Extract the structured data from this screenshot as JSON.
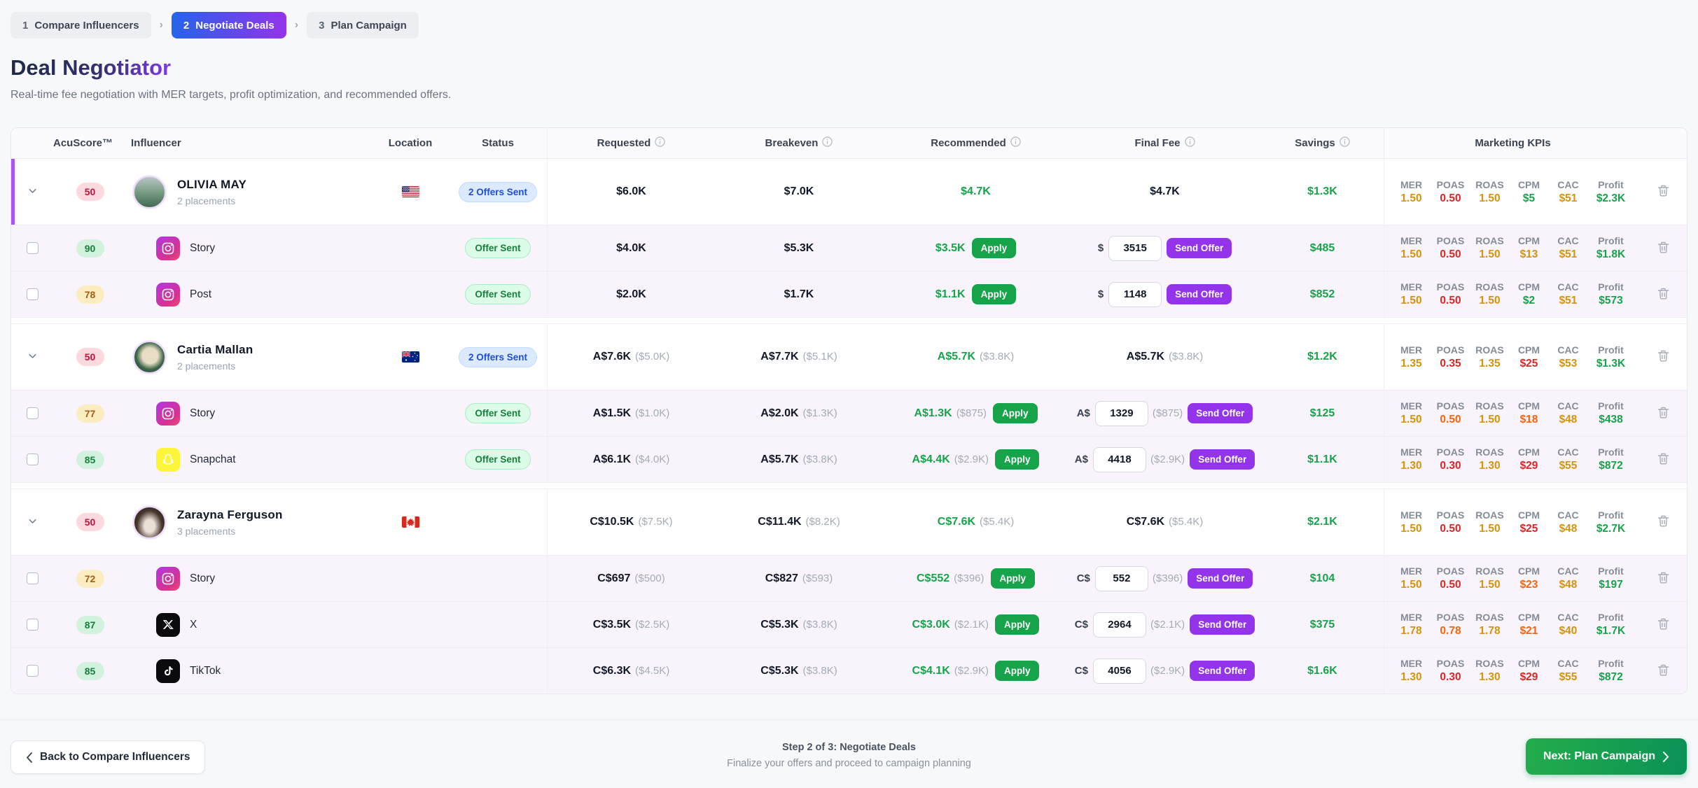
{
  "breadcrumb": {
    "steps": [
      {
        "num": "1",
        "label": "Compare Influencers",
        "active": false
      },
      {
        "num": "2",
        "label": "Negotiate Deals",
        "active": true
      },
      {
        "num": "3",
        "label": "Plan Campaign",
        "active": false
      }
    ]
  },
  "page": {
    "title": "Deal Negotiator",
    "subtitle": "Real-time fee negotiation with MER targets, profit optimization, and recommended offers."
  },
  "table": {
    "headers": {
      "acuscore": "AcuScore™",
      "influencer": "Influencer",
      "location": "Location",
      "status": "Status",
      "requested": "Requested",
      "breakeven": "Breakeven",
      "recommended": "Recommended",
      "final_fee": "Final Fee",
      "savings": "Savings",
      "kpis": "Marketing KPIs"
    },
    "kpi_labels": [
      "MER",
      "POAS",
      "ROAS",
      "CPM",
      "CAC",
      "Profit"
    ],
    "buttons": {
      "apply": "Apply",
      "send_offer": "Send Offer"
    },
    "groups": [
      {
        "name": "OLIVIA MAY",
        "placements_label": "2 placements",
        "score": "50",
        "score_level": "low",
        "flag": "us",
        "avatar": "olivia",
        "accent": true,
        "status": {
          "label": "2 Offers Sent",
          "style": "blue"
        },
        "requested": {
          "main": "$6.0K",
          "secondary": ""
        },
        "breakeven": {
          "main": "$7.0K",
          "secondary": ""
        },
        "recommended": {
          "main": "$4.7K",
          "secondary": ""
        },
        "final_fee": {
          "main": "$4.7K",
          "secondary": ""
        },
        "savings": "$1.3K",
        "kpis": [
          {
            "v": "1.50",
            "c": "amber"
          },
          {
            "v": "0.50",
            "c": "red"
          },
          {
            "v": "1.50",
            "c": "amber"
          },
          {
            "v": "$5",
            "c": "green"
          },
          {
            "v": "$51",
            "c": "amber"
          },
          {
            "v": "$2.3K",
            "c": "green"
          }
        ],
        "placements": [
          {
            "label": "Story",
            "platform": "instagram",
            "score": "90",
            "score_level": "high",
            "status": {
              "label": "Offer Sent",
              "style": "green"
            },
            "requested": {
              "main": "$4.0K",
              "secondary": ""
            },
            "breakeven": {
              "main": "$5.3K",
              "secondary": ""
            },
            "recommended": {
              "main": "$3.5K",
              "secondary": ""
            },
            "fee": {
              "prefix": "$",
              "value": "3515",
              "secondary": ""
            },
            "savings": "$485",
            "kpis": [
              {
                "v": "1.50",
                "c": "amber"
              },
              {
                "v": "0.50",
                "c": "red"
              },
              {
                "v": "1.50",
                "c": "amber"
              },
              {
                "v": "$13",
                "c": "amber"
              },
              {
                "v": "$51",
                "c": "amber"
              },
              {
                "v": "$1.8K",
                "c": "green"
              }
            ]
          },
          {
            "label": "Post",
            "platform": "instagram",
            "score": "78",
            "score_level": "mid",
            "status": {
              "label": "Offer Sent",
              "style": "green"
            },
            "requested": {
              "main": "$2.0K",
              "secondary": ""
            },
            "breakeven": {
              "main": "$1.7K",
              "secondary": ""
            },
            "recommended": {
              "main": "$1.1K",
              "secondary": ""
            },
            "fee": {
              "prefix": "$",
              "value": "1148",
              "secondary": ""
            },
            "savings": "$852",
            "kpis": [
              {
                "v": "1.50",
                "c": "amber"
              },
              {
                "v": "0.50",
                "c": "red"
              },
              {
                "v": "1.50",
                "c": "amber"
              },
              {
                "v": "$2",
                "c": "green"
              },
              {
                "v": "$51",
                "c": "amber"
              },
              {
                "v": "$573",
                "c": "green"
              }
            ]
          }
        ]
      },
      {
        "name": "Cartia Mallan",
        "placements_label": "2 placements",
        "score": "50",
        "score_level": "low",
        "flag": "au",
        "avatar": "cartia",
        "accent": false,
        "status": {
          "label": "2 Offers Sent",
          "style": "blue"
        },
        "requested": {
          "main": "A$7.6K",
          "secondary": "($5.0K)"
        },
        "breakeven": {
          "main": "A$7.7K",
          "secondary": "($5.1K)"
        },
        "recommended": {
          "main": "A$5.7K",
          "secondary": "($3.8K)"
        },
        "final_fee": {
          "main": "A$5.7K",
          "secondary": "($3.8K)"
        },
        "savings": "$1.2K",
        "kpis": [
          {
            "v": "1.35",
            "c": "amber"
          },
          {
            "v": "0.35",
            "c": "red"
          },
          {
            "v": "1.35",
            "c": "amber"
          },
          {
            "v": "$25",
            "c": "red"
          },
          {
            "v": "$53",
            "c": "amber"
          },
          {
            "v": "$1.3K",
            "c": "green"
          }
        ],
        "placements": [
          {
            "label": "Story",
            "platform": "instagram",
            "score": "77",
            "score_level": "mid",
            "status": {
              "label": "Offer Sent",
              "style": "green"
            },
            "requested": {
              "main": "A$1.5K",
              "secondary": "($1.0K)"
            },
            "breakeven": {
              "main": "A$2.0K",
              "secondary": "($1.3K)"
            },
            "recommended": {
              "main": "A$1.3K",
              "secondary": "($875)"
            },
            "fee": {
              "prefix": "A$",
              "value": "1329",
              "secondary": "($875)"
            },
            "savings": "$125",
            "kpis": [
              {
                "v": "1.50",
                "c": "amber"
              },
              {
                "v": "0.50",
                "c": "orange"
              },
              {
                "v": "1.50",
                "c": "amber"
              },
              {
                "v": "$18",
                "c": "orange"
              },
              {
                "v": "$48",
                "c": "amber"
              },
              {
                "v": "$438",
                "c": "green"
              }
            ]
          },
          {
            "label": "Snapchat",
            "platform": "snapchat",
            "score": "85",
            "score_level": "high",
            "status": {
              "label": "Offer Sent",
              "style": "green"
            },
            "requested": {
              "main": "A$6.1K",
              "secondary": "($4.0K)"
            },
            "breakeven": {
              "main": "A$5.7K",
              "secondary": "($3.8K)"
            },
            "recommended": {
              "main": "A$4.4K",
              "secondary": "($2.9K)"
            },
            "fee": {
              "prefix": "A$",
              "value": "4418",
              "secondary": "($2.9K)"
            },
            "savings": "$1.1K",
            "kpis": [
              {
                "v": "1.30",
                "c": "amber"
              },
              {
                "v": "0.30",
                "c": "red"
              },
              {
                "v": "1.30",
                "c": "amber"
              },
              {
                "v": "$29",
                "c": "red"
              },
              {
                "v": "$55",
                "c": "amber"
              },
              {
                "v": "$872",
                "c": "green"
              }
            ]
          }
        ]
      },
      {
        "name": "Zarayna Ferguson",
        "placements_label": "3 placements",
        "score": "50",
        "score_level": "low",
        "flag": "ca",
        "avatar": "zarayna",
        "accent": false,
        "status": null,
        "requested": {
          "main": "C$10.5K",
          "secondary": "($7.5K)"
        },
        "breakeven": {
          "main": "C$11.4K",
          "secondary": "($8.2K)"
        },
        "recommended": {
          "main": "C$7.6K",
          "secondary": "($5.4K)"
        },
        "final_fee": {
          "main": "C$7.6K",
          "secondary": "($5.4K)"
        },
        "savings": "$2.1K",
        "kpis": [
          {
            "v": "1.50",
            "c": "amber"
          },
          {
            "v": "0.50",
            "c": "red"
          },
          {
            "v": "1.50",
            "c": "amber"
          },
          {
            "v": "$25",
            "c": "red"
          },
          {
            "v": "$48",
            "c": "amber"
          },
          {
            "v": "$2.7K",
            "c": "green"
          }
        ],
        "placements": [
          {
            "label": "Story",
            "platform": "instagram",
            "score": "72",
            "score_level": "mid",
            "status": null,
            "requested": {
              "main": "C$697",
              "secondary": "($500)"
            },
            "breakeven": {
              "main": "C$827",
              "secondary": "($593)"
            },
            "recommended": {
              "main": "C$552",
              "secondary": "($396)"
            },
            "fee": {
              "prefix": "C$",
              "value": "552",
              "secondary": "($396)"
            },
            "savings": "$104",
            "kpis": [
              {
                "v": "1.50",
                "c": "amber"
              },
              {
                "v": "0.50",
                "c": "red"
              },
              {
                "v": "1.50",
                "c": "amber"
              },
              {
                "v": "$23",
                "c": "orange"
              },
              {
                "v": "$48",
                "c": "amber"
              },
              {
                "v": "$197",
                "c": "green"
              }
            ]
          },
          {
            "label": "X",
            "platform": "x",
            "score": "87",
            "score_level": "high",
            "status": null,
            "requested": {
              "main": "C$3.5K",
              "secondary": "($2.5K)"
            },
            "breakeven": {
              "main": "C$5.3K",
              "secondary": "($3.8K)"
            },
            "recommended": {
              "main": "C$3.0K",
              "secondary": "($2.1K)"
            },
            "fee": {
              "prefix": "C$",
              "value": "2964",
              "secondary": "($2.1K)"
            },
            "savings": "$375",
            "kpis": [
              {
                "v": "1.78",
                "c": "amber"
              },
              {
                "v": "0.78",
                "c": "orange"
              },
              {
                "v": "1.78",
                "c": "amber"
              },
              {
                "v": "$21",
                "c": "orange"
              },
              {
                "v": "$40",
                "c": "amber"
              },
              {
                "v": "$1.7K",
                "c": "green"
              }
            ]
          },
          {
            "label": "TikTok",
            "platform": "tiktok",
            "score": "85",
            "score_level": "high",
            "status": null,
            "requested": {
              "main": "C$6.3K",
              "secondary": "($4.5K)"
            },
            "breakeven": {
              "main": "C$5.3K",
              "secondary": "($3.8K)"
            },
            "recommended": {
              "main": "C$4.1K",
              "secondary": "($2.9K)"
            },
            "fee": {
              "prefix": "C$",
              "value": "4056",
              "secondary": "($2.9K)"
            },
            "savings": "$1.6K",
            "kpis": [
              {
                "v": "1.30",
                "c": "amber"
              },
              {
                "v": "0.30",
                "c": "red"
              },
              {
                "v": "1.30",
                "c": "amber"
              },
              {
                "v": "$29",
                "c": "red"
              },
              {
                "v": "$55",
                "c": "amber"
              },
              {
                "v": "$872",
                "c": "green"
              }
            ]
          }
        ]
      }
    ]
  },
  "footer": {
    "back_label": "Back to Compare Influencers",
    "step_title": "Step 2 of 3: Negotiate Deals",
    "step_subtitle": "Finalize your offers and proceed to campaign planning",
    "next_label": "Next: Plan Campaign"
  },
  "colors": {
    "accent_bar": "#a855f7",
    "active_step_gradient": [
      "#2563eb",
      "#9333ea"
    ],
    "apply_button": "#16a34a",
    "send_offer_button": "#9333ea",
    "savings_text": "#16a34a",
    "kpi_amber": "#d4930c",
    "kpi_red": "#dc2626",
    "kpi_orange": "#f4650e",
    "kpi_green": "#16a34a",
    "status_blue": "#1d4ed8",
    "status_green": "#15803d",
    "next_button_gradient": [
      "#23ad4b",
      "#0b9156"
    ]
  }
}
